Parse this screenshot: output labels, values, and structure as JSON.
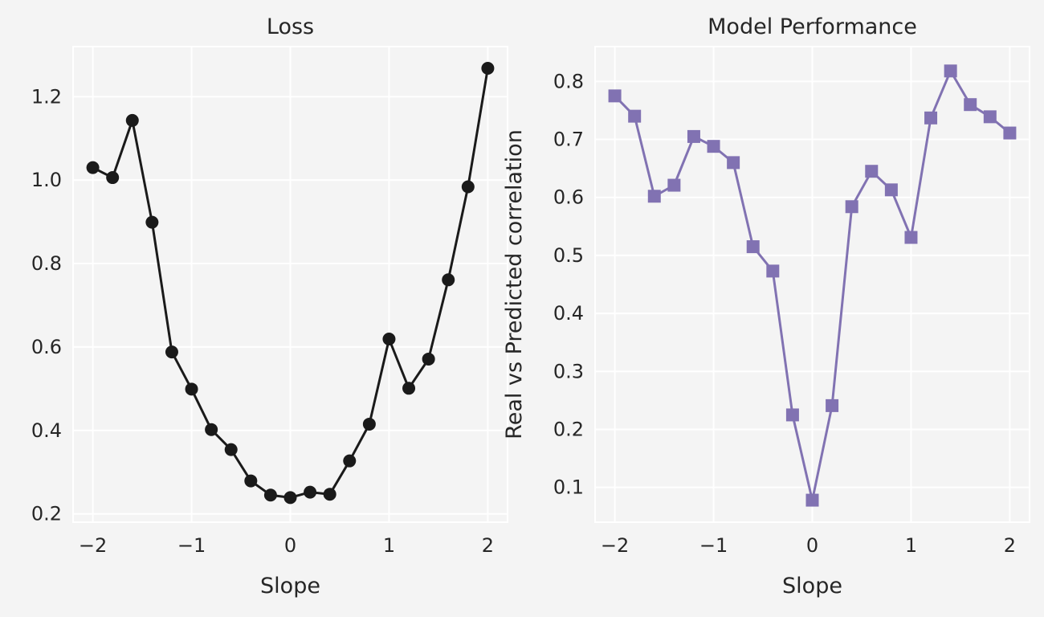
{
  "chart_data": [
    {
      "type": "line",
      "title": "Loss",
      "xlabel": "Slope",
      "ylabel": "",
      "xlim": [
        -2.2,
        2.2
      ],
      "ylim": [
        0.18,
        1.32
      ],
      "xticks": [
        -2,
        -1,
        0,
        1,
        2
      ],
      "xtick_labels": [
        "−2",
        "−1",
        "0",
        "1",
        "2"
      ],
      "yticks": [
        0.2,
        0.4,
        0.6,
        0.8,
        1.0,
        1.2
      ],
      "ytick_labels": [
        "0.2",
        "0.4",
        "0.6",
        "0.8",
        "1.0",
        "1.2"
      ],
      "grid": true,
      "color": "#1a1a1a",
      "marker": "circle",
      "x": [
        -2.0,
        -1.8,
        -1.6,
        -1.4,
        -1.2,
        -1.0,
        -0.8,
        -0.6,
        -0.4,
        -0.2,
        0.0,
        0.2,
        0.4,
        0.6,
        0.8,
        1.0,
        1.2,
        1.4,
        1.6,
        1.8,
        2.0
      ],
      "y": [
        1.03,
        1.006,
        1.143,
        0.899,
        0.588,
        0.499,
        0.402,
        0.354,
        0.279,
        0.245,
        0.239,
        0.252,
        0.247,
        0.327,
        0.415,
        0.619,
        0.501,
        0.571,
        0.761,
        0.984,
        1.268
      ]
    },
    {
      "type": "line",
      "title": "Model Performance",
      "xlabel": "Slope",
      "ylabel": "Real vs Predicted correlation",
      "xlim": [
        -2.2,
        2.2
      ],
      "ylim": [
        0.04,
        0.86
      ],
      "xticks": [
        -2,
        -1,
        0,
        1,
        2
      ],
      "xtick_labels": [
        "−2",
        "−1",
        "0",
        "1",
        "2"
      ],
      "yticks": [
        0.1,
        0.2,
        0.3,
        0.4,
        0.5,
        0.6,
        0.7,
        0.8
      ],
      "ytick_labels": [
        "0.1",
        "0.2",
        "0.3",
        "0.4",
        "0.5",
        "0.6",
        "0.7",
        "0.8"
      ],
      "grid": true,
      "color": "#8172b2",
      "marker": "square",
      "x": [
        -2.0,
        -1.8,
        -1.6,
        -1.4,
        -1.2,
        -1.0,
        -0.8,
        -0.6,
        -0.4,
        -0.2,
        0.0,
        0.2,
        0.4,
        0.6,
        0.8,
        1.0,
        1.2,
        1.4,
        1.6,
        1.8,
        2.0
      ],
      "y": [
        0.775,
        0.74,
        0.602,
        0.621,
        0.705,
        0.688,
        0.66,
        0.515,
        0.473,
        0.225,
        0.078,
        0.241,
        0.584,
        0.645,
        0.613,
        0.531,
        0.737,
        0.818,
        0.76,
        0.739,
        0.711
      ]
    }
  ]
}
